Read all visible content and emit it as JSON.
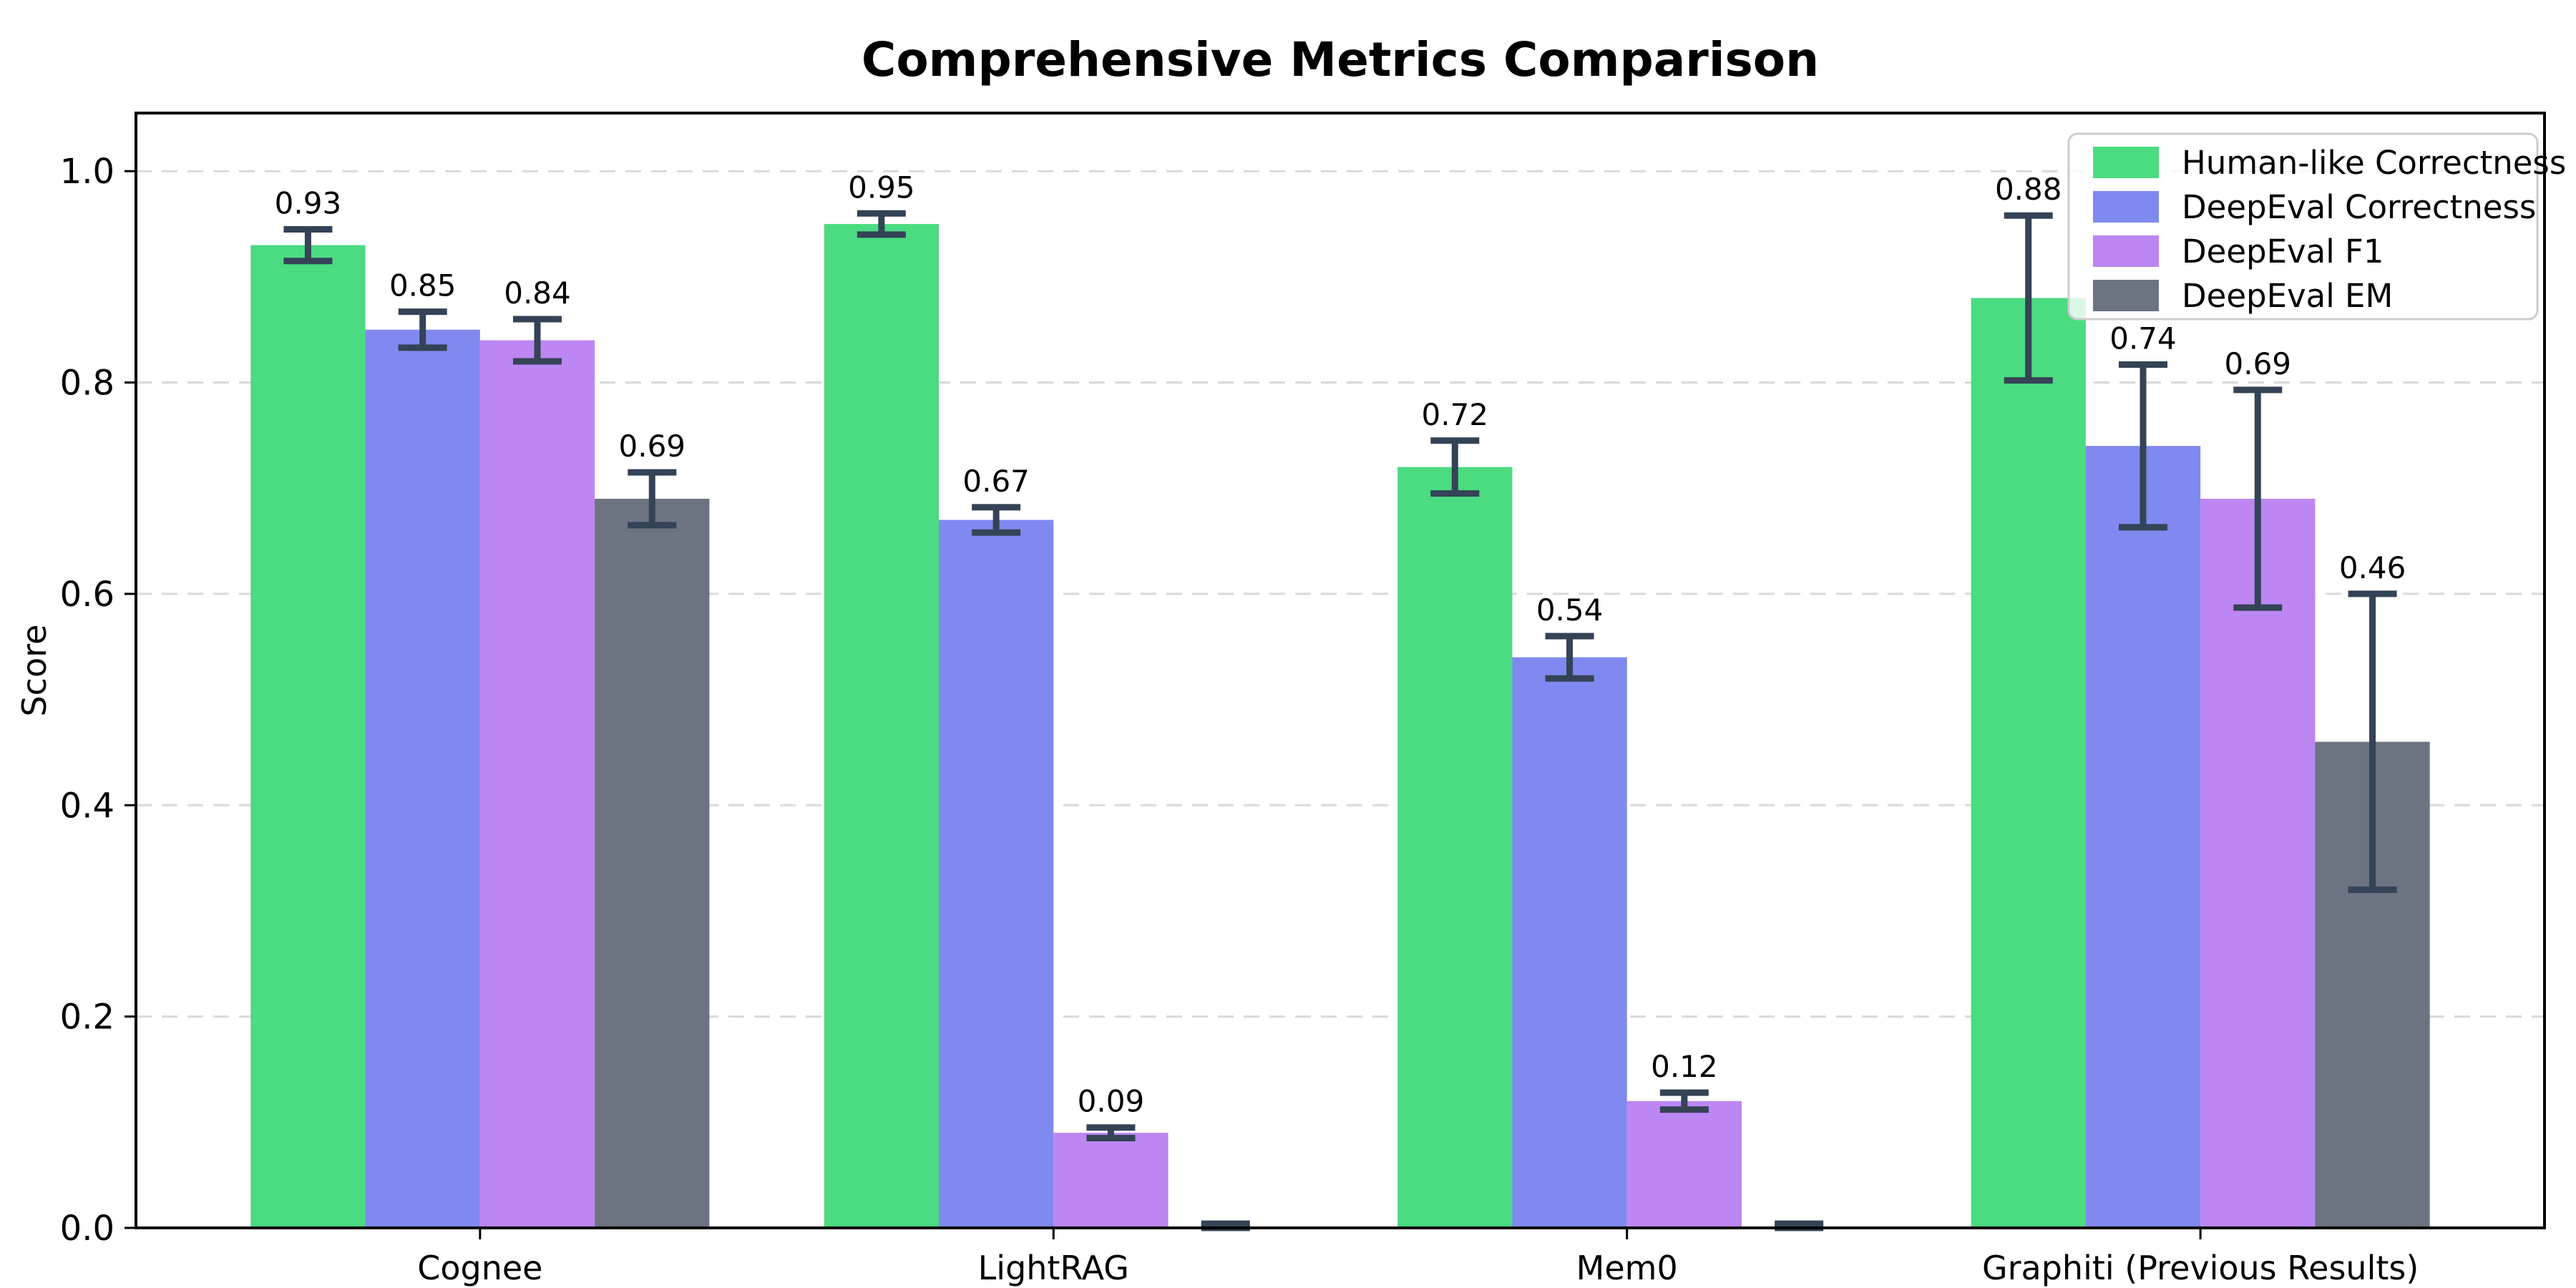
{
  "figure": {
    "title": "Comprehensive Metrics Comparison"
  },
  "chart_data": {
    "type": "bar",
    "title": "Comprehensive Metrics Comparison",
    "xlabel": "",
    "ylabel": "Score",
    "categories": [
      "Cognee",
      "LightRAG",
      "Mem0",
      "Graphiti (Previous Results)"
    ],
    "series": [
      {
        "name": "Human-like Correctness",
        "color": "#4bdb81",
        "values": [
          0.93,
          0.95,
          0.72,
          0.88
        ],
        "errors": [
          0.015,
          0.01,
          0.025,
          0.078
        ]
      },
      {
        "name": "DeepEval Correctness",
        "color": "#8089ef",
        "values": [
          0.85,
          0.67,
          0.54,
          0.74
        ],
        "errors": [
          0.017,
          0.012,
          0.02,
          0.077
        ]
      },
      {
        "name": "DeepEval F1",
        "color": "#bc86f3",
        "values": [
          0.84,
          0.09,
          0.12,
          0.69
        ],
        "errors": [
          0.02,
          0.005,
          0.008,
          0.103
        ]
      },
      {
        "name": "DeepEval EM",
        "color": "#6c7381",
        "values": [
          0.69,
          0.0,
          0.0,
          0.46
        ],
        "errors": [
          0.025,
          0.004,
          0.004,
          0.14
        ]
      }
    ],
    "bar_value_labels": [
      [
        "0.93",
        "0.95",
        "0.72",
        "0.88"
      ],
      [
        "0.85",
        "0.67",
        "0.54",
        "0.74"
      ],
      [
        "0.84",
        "0.09",
        "0.12",
        "0.69"
      ],
      [
        "0.69",
        "",
        "",
        "0.46"
      ]
    ],
    "yticks": [
      {
        "label": "0.0",
        "value": 0.0
      },
      {
        "label": "0.2",
        "value": 0.2
      },
      {
        "label": "0.4",
        "value": 0.4
      },
      {
        "label": "0.6",
        "value": 0.6
      },
      {
        "label": "0.8",
        "value": 0.8
      },
      {
        "label": "1.0",
        "value": 1.0
      }
    ],
    "ylim": [
      0,
      1.055
    ],
    "grid": {
      "axis": "y",
      "style": "dashed",
      "color": "#d9d9d9"
    },
    "legend": {
      "position": "upper right"
    },
    "error_bar_color": "#344356",
    "axis_color": "#000000",
    "background_color": "#ffffff"
  }
}
